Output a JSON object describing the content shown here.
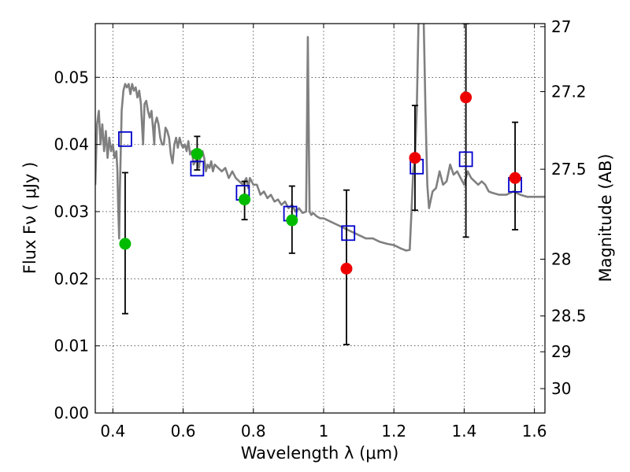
{
  "chart_data": {
    "type": "scatter",
    "title": "",
    "xlabel": "Wavelength  λ (μm)",
    "ylabel": "Flux  Fν  ( μJy )",
    "ylabel_right": "Magnitude (AB)",
    "xlim": [
      0.35,
      1.63
    ],
    "ylim": [
      0.0,
      0.058
    ],
    "grid": true,
    "x_ticks": [
      {
        "value": 0.4,
        "label": "0.4"
      },
      {
        "value": 0.6,
        "label": "0.6"
      },
      {
        "value": 0.8,
        "label": "0.8"
      },
      {
        "value": 1.0,
        "label": "1"
      },
      {
        "value": 1.2,
        "label": "1.2"
      },
      {
        "value": 1.4,
        "label": "1.4"
      },
      {
        "value": 1.6,
        "label": "1.6"
      }
    ],
    "y_ticks": [
      {
        "value": 0.0,
        "label": "0.00"
      },
      {
        "value": 0.01,
        "label": "0.01"
      },
      {
        "value": 0.02,
        "label": "0.02"
      },
      {
        "value": 0.03,
        "label": "0.03"
      },
      {
        "value": 0.04,
        "label": "0.04"
      },
      {
        "value": 0.05,
        "label": "0.05"
      }
    ],
    "mag_ticks": [
      {
        "value": 27.0,
        "label": "27"
      },
      {
        "value": 27.2,
        "label": "27.2"
      },
      {
        "value": 27.5,
        "label": "27.5"
      },
      {
        "value": 28.0,
        "label": "28"
      },
      {
        "value": 28.5,
        "label": "28.5"
      },
      {
        "value": 29.0,
        "label": "29"
      },
      {
        "value": 30.0,
        "label": "30"
      }
    ],
    "series": [
      {
        "kind": "line",
        "color": "#808080",
        "points": [
          [
            0.35,
            0.034
          ],
          [
            0.355,
            0.043
          ],
          [
            0.36,
            0.045
          ],
          [
            0.365,
            0.04
          ],
          [
            0.37,
            0.043
          ],
          [
            0.375,
            0.039
          ],
          [
            0.38,
            0.042
          ],
          [
            0.385,
            0.038
          ],
          [
            0.39,
            0.041
          ],
          [
            0.395,
            0.039
          ],
          [
            0.4,
            0.04
          ],
          [
            0.405,
            0.038
          ],
          [
            0.41,
            0.039
          ],
          [
            0.413,
            0.036
          ],
          [
            0.415,
            0.031
          ],
          [
            0.418,
            0.026
          ],
          [
            0.42,
            0.033
          ],
          [
            0.425,
            0.045
          ],
          [
            0.43,
            0.048
          ],
          [
            0.435,
            0.049
          ],
          [
            0.44,
            0.0485
          ],
          [
            0.445,
            0.049
          ],
          [
            0.45,
            0.0475
          ],
          [
            0.455,
            0.049
          ],
          [
            0.46,
            0.048
          ],
          [
            0.465,
            0.0485
          ],
          [
            0.47,
            0.047
          ],
          [
            0.475,
            0.048
          ],
          [
            0.48,
            0.046
          ],
          [
            0.483,
            0.043
          ],
          [
            0.486,
            0.04
          ],
          [
            0.49,
            0.046
          ],
          [
            0.495,
            0.0465
          ],
          [
            0.5,
            0.045
          ],
          [
            0.505,
            0.044
          ],
          [
            0.51,
            0.045
          ],
          [
            0.515,
            0.042
          ],
          [
            0.518,
            0.04
          ],
          [
            0.52,
            0.043
          ],
          [
            0.525,
            0.044
          ],
          [
            0.53,
            0.043
          ],
          [
            0.535,
            0.041
          ],
          [
            0.54,
            0.04
          ],
          [
            0.545,
            0.04
          ],
          [
            0.55,
            0.0425
          ],
          [
            0.555,
            0.042
          ],
          [
            0.56,
            0.041
          ],
          [
            0.565,
            0.0385
          ],
          [
            0.57,
            0.0372
          ],
          [
            0.575,
            0.04
          ],
          [
            0.58,
            0.041
          ],
          [
            0.585,
            0.0395
          ],
          [
            0.59,
            0.041
          ],
          [
            0.595,
            0.04
          ],
          [
            0.6,
            0.0395
          ],
          [
            0.605,
            0.04
          ],
          [
            0.61,
            0.039
          ],
          [
            0.615,
            0.0405
          ],
          [
            0.62,
            0.0385
          ],
          [
            0.625,
            0.039
          ],
          [
            0.63,
            0.037
          ],
          [
            0.635,
            0.0375
          ],
          [
            0.64,
            0.038
          ],
          [
            0.645,
            0.0365
          ],
          [
            0.65,
            0.0385
          ],
          [
            0.655,
            0.039
          ],
          [
            0.66,
            0.038
          ],
          [
            0.665,
            0.036
          ],
          [
            0.67,
            0.037
          ],
          [
            0.675,
            0.0365
          ],
          [
            0.68,
            0.0375
          ],
          [
            0.685,
            0.036
          ],
          [
            0.69,
            0.037
          ],
          [
            0.7,
            0.0365
          ],
          [
            0.71,
            0.036
          ],
          [
            0.72,
            0.0365
          ],
          [
            0.73,
            0.035
          ],
          [
            0.74,
            0.036
          ],
          [
            0.75,
            0.035
          ],
          [
            0.76,
            0.0345
          ],
          [
            0.77,
            0.034
          ],
          [
            0.78,
            0.035
          ],
          [
            0.785,
            0.0335
          ],
          [
            0.79,
            0.035
          ],
          [
            0.8,
            0.034
          ],
          [
            0.81,
            0.034
          ],
          [
            0.82,
            0.0325
          ],
          [
            0.83,
            0.033
          ],
          [
            0.84,
            0.032
          ],
          [
            0.85,
            0.0325
          ],
          [
            0.86,
            0.0315
          ],
          [
            0.87,
            0.0318
          ],
          [
            0.88,
            0.031
          ],
          [
            0.89,
            0.0315
          ],
          [
            0.9,
            0.0305
          ],
          [
            0.91,
            0.031
          ],
          [
            0.92,
            0.03
          ],
          [
            0.93,
            0.0305
          ],
          [
            0.94,
            0.0298
          ],
          [
            0.95,
            0.03
          ],
          [
            0.953,
            0.045
          ],
          [
            0.955,
            0.056
          ],
          [
            0.957,
            0.045
          ],
          [
            0.96,
            0.03
          ],
          [
            0.965,
            0.0295
          ],
          [
            0.97,
            0.0298
          ],
          [
            0.98,
            0.0293
          ],
          [
            0.99,
            0.029
          ],
          [
            1.0,
            0.029
          ],
          [
            1.02,
            0.0285
          ],
          [
            1.04,
            0.028
          ],
          [
            1.06,
            0.0275
          ],
          [
            1.08,
            0.027
          ],
          [
            1.1,
            0.0265
          ],
          [
            1.12,
            0.026
          ],
          [
            1.14,
            0.026
          ],
          [
            1.16,
            0.0255
          ],
          [
            1.18,
            0.0252
          ],
          [
            1.2,
            0.025
          ],
          [
            1.22,
            0.0245
          ],
          [
            1.235,
            0.0242
          ],
          [
            1.245,
            0.0243
          ],
          [
            1.25,
            0.03
          ],
          [
            1.255,
            0.036
          ],
          [
            1.26,
            0.038
          ],
          [
            1.265,
            0.045
          ],
          [
            1.27,
            0.058
          ],
          [
            1.275,
            0.07
          ],
          [
            1.28,
            0.07
          ],
          [
            1.285,
            0.058
          ],
          [
            1.29,
            0.045
          ],
          [
            1.295,
            0.034
          ],
          [
            1.3,
            0.0305
          ],
          [
            1.31,
            0.033
          ],
          [
            1.32,
            0.0335
          ],
          [
            1.33,
            0.036
          ],
          [
            1.34,
            0.034
          ],
          [
            1.35,
            0.0345
          ],
          [
            1.36,
            0.037
          ],
          [
            1.37,
            0.0355
          ],
          [
            1.38,
            0.036
          ],
          [
            1.39,
            0.035
          ],
          [
            1.4,
            0.034
          ],
          [
            1.41,
            0.036
          ],
          [
            1.42,
            0.035
          ],
          [
            1.43,
            0.0345
          ],
          [
            1.44,
            0.034
          ],
          [
            1.45,
            0.0345
          ],
          [
            1.46,
            0.034
          ],
          [
            1.47,
            0.033
          ],
          [
            1.48,
            0.0328
          ],
          [
            1.5,
            0.0325
          ],
          [
            1.52,
            0.0325
          ],
          [
            1.54,
            0.033
          ],
          [
            1.56,
            0.0325
          ],
          [
            1.58,
            0.0322
          ],
          [
            1.6,
            0.0322
          ],
          [
            1.63,
            0.0322
          ]
        ]
      },
      {
        "kind": "errorbar",
        "color": "#000000",
        "points": [
          [
            0.435,
            0.0148,
            0.0358
          ],
          [
            0.64,
            0.0362,
            0.0412
          ],
          [
            0.775,
            0.0288,
            0.0345
          ],
          [
            0.91,
            0.0238,
            0.0338
          ],
          [
            1.065,
            0.0102,
            0.0332
          ],
          [
            1.26,
            0.0302,
            0.0458
          ],
          [
            1.405,
            0.0262,
            0.058
          ],
          [
            1.545,
            0.0273,
            0.0433
          ]
        ]
      },
      {
        "kind": "square",
        "color": "#0000cc",
        "points": [
          [
            0.435,
            0.0408
          ],
          [
            0.64,
            0.0364
          ],
          [
            0.77,
            0.0328
          ],
          [
            0.905,
            0.0297
          ],
          [
            1.07,
            0.0268
          ],
          [
            1.265,
            0.0367
          ],
          [
            1.405,
            0.0378
          ],
          [
            1.545,
            0.034
          ]
        ]
      },
      {
        "kind": "circle",
        "color": "#00bb00",
        "points": [
          [
            0.435,
            0.0252
          ],
          [
            0.64,
            0.0386
          ],
          [
            0.775,
            0.0318
          ],
          [
            0.91,
            0.0287
          ]
        ]
      },
      {
        "kind": "circle",
        "color": "#ee0000",
        "points": [
          [
            1.065,
            0.0215
          ],
          [
            1.26,
            0.038
          ],
          [
            1.405,
            0.047
          ],
          [
            1.545,
            0.035
          ]
        ]
      }
    ]
  }
}
